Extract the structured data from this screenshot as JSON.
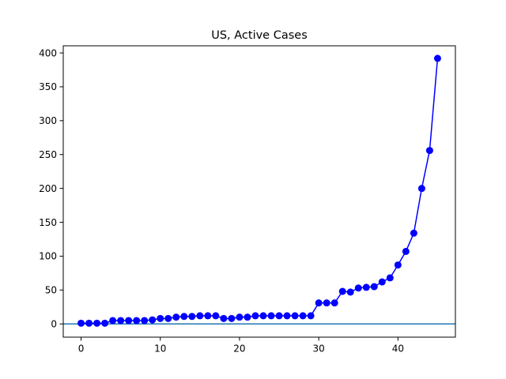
{
  "chart_data": {
    "type": "line",
    "title": "US, Active Cases",
    "xlabel": "",
    "ylabel": "",
    "xlim": [
      -2.25,
      47.25
    ],
    "ylim": [
      -19.55,
      410.55
    ],
    "xticks": [
      0,
      10,
      20,
      30,
      40
    ],
    "yticks": [
      0,
      50,
      100,
      150,
      200,
      250,
      300,
      350,
      400
    ],
    "grid": false,
    "series": [
      {
        "color": "#0000ff",
        "marker": "circle",
        "x": [
          0,
          1,
          2,
          3,
          4,
          5,
          6,
          7,
          8,
          9,
          10,
          11,
          12,
          13,
          14,
          15,
          16,
          17,
          18,
          19,
          20,
          21,
          22,
          23,
          24,
          25,
          26,
          27,
          28,
          29,
          30,
          31,
          32,
          33,
          34,
          35,
          36,
          37,
          38,
          39,
          40,
          41,
          42,
          43,
          44,
          45
        ],
        "values": [
          1,
          1,
          1,
          1,
          5,
          5,
          5,
          5,
          5,
          6,
          8,
          8,
          10,
          11,
          11,
          12,
          12,
          12,
          8,
          8,
          10,
          10,
          12,
          12,
          12,
          12,
          12,
          12,
          12,
          12,
          31,
          31,
          31,
          48,
          47,
          53,
          54,
          55,
          62,
          68,
          87,
          107,
          134,
          200,
          256,
          392
        ]
      }
    ],
    "reference_lines": [
      {
        "orientation": "horizontal",
        "y": 0,
        "color": "#1f77b4"
      }
    ]
  }
}
